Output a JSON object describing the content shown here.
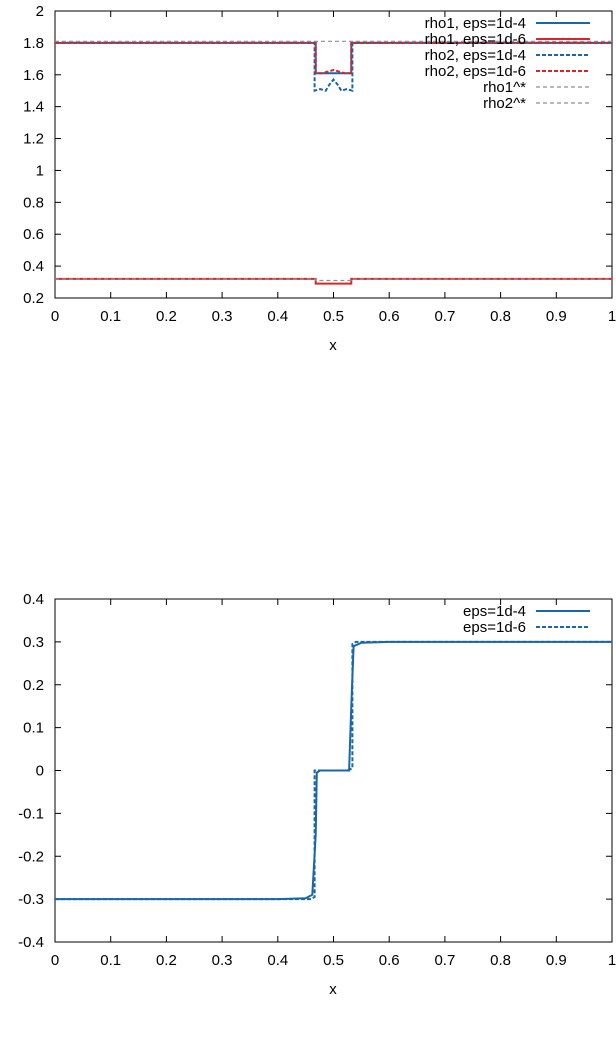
{
  "colors": {
    "blue": "#1a66a8",
    "red": "#d7262a",
    "gray": "#8f8f8f",
    "axis": "#000000"
  },
  "chart_data": [
    {
      "type": "line",
      "xlabel": "x",
      "ylabel": "",
      "xlim": [
        0,
        1
      ],
      "ylim": [
        0.2,
        2
      ],
      "xticks": [
        "0",
        "0.1",
        "0.2",
        "0.3",
        "0.4",
        "0.5",
        "0.6",
        "0.7",
        "0.8",
        "0.9",
        "1"
      ],
      "yticks": [
        "0.2",
        "0.4",
        "0.6",
        "0.8",
        "1",
        "1.2",
        "1.4",
        "1.6",
        "1.8",
        "2"
      ],
      "legend_position": "top-right",
      "series": [
        {
          "name": "rho1, eps=1d-4",
          "color": "blue",
          "dash": "solid",
          "x": [
            0,
            0.468,
            0.468,
            0.532,
            0.532,
            1
          ],
          "y": [
            1.8,
            1.8,
            1.61,
            1.61,
            1.8,
            1.8
          ]
        },
        {
          "name": "rho1, eps=1d-6",
          "color": "red",
          "dash": "solid",
          "x": [
            0,
            0.468,
            0.468,
            0.532,
            0.532,
            1
          ],
          "y": [
            0.32,
            0.32,
            0.29,
            0.29,
            0.32,
            0.32
          ]
        },
        {
          "name": "rho2, eps=1d-4",
          "color": "blue",
          "dash": "dash",
          "x": [
            0,
            0.466,
            0.466,
            0.476,
            0.486,
            0.493,
            0.5,
            0.507,
            0.514,
            0.524,
            0.534,
            0.534,
            1
          ],
          "y": [
            1.8,
            1.8,
            1.5,
            1.51,
            1.5,
            1.54,
            1.57,
            1.54,
            1.5,
            1.51,
            1.5,
            1.8,
            1.8
          ]
        },
        {
          "name": "rho2, eps=1d-6",
          "color": "red",
          "dash": "dash",
          "x": [
            0,
            0.468,
            0.468,
            0.48,
            0.49,
            0.5,
            0.51,
            0.52,
            0.532,
            0.532,
            1
          ],
          "y": [
            1.8,
            1.8,
            1.61,
            1.61,
            1.62,
            1.63,
            1.62,
            1.61,
            1.61,
            1.8,
            1.8
          ]
        },
        {
          "name": "rho1^*",
          "color": "gray",
          "dash": "dash",
          "x": [
            0,
            0.468,
            0.468,
            0.532,
            0.532,
            1
          ],
          "y": [
            0.32,
            0.32,
            0.31,
            0.31,
            0.32,
            0.32
          ]
        },
        {
          "name": "rho2^*",
          "color": "gray",
          "dash": "dash",
          "x": [
            0,
            1
          ],
          "y": [
            1.81,
            1.81
          ]
        }
      ]
    },
    {
      "type": "line",
      "xlabel": "x",
      "ylabel": "",
      "xlim": [
        0,
        1
      ],
      "ylim": [
        -0.4,
        0.4
      ],
      "xticks": [
        "0",
        "0.1",
        "0.2",
        "0.3",
        "0.4",
        "0.5",
        "0.6",
        "0.7",
        "0.8",
        "0.9",
        "1"
      ],
      "yticks": [
        "-0.4",
        "-0.3",
        "-0.2",
        "-0.1",
        "0",
        "0.1",
        "0.2",
        "0.3",
        "0.4"
      ],
      "legend_position": "top-right",
      "series": [
        {
          "name": "eps=1d-4",
          "color": "blue",
          "dash": "solid",
          "x": [
            0,
            0.4,
            0.45,
            0.462,
            0.468,
            0.47,
            0.476,
            0.5,
            0.528,
            0.532,
            0.536,
            0.55,
            0.6,
            1
          ],
          "y": [
            -0.3,
            -0.3,
            -0.298,
            -0.29,
            -0.15,
            -0.005,
            0.0,
            0.0,
            0.0,
            0.15,
            0.29,
            0.298,
            0.3,
            0.3
          ]
        },
        {
          "name": "eps=1d-6",
          "color": "blue",
          "dash": "dash",
          "x": [
            0,
            0.46,
            0.466,
            0.466,
            0.476,
            0.524,
            0.534,
            0.534,
            0.54,
            1
          ],
          "y": [
            -0.3,
            -0.3,
            -0.295,
            0.0,
            0.0,
            0.0,
            0.005,
            0.295,
            0.3,
            0.3
          ]
        }
      ]
    }
  ]
}
